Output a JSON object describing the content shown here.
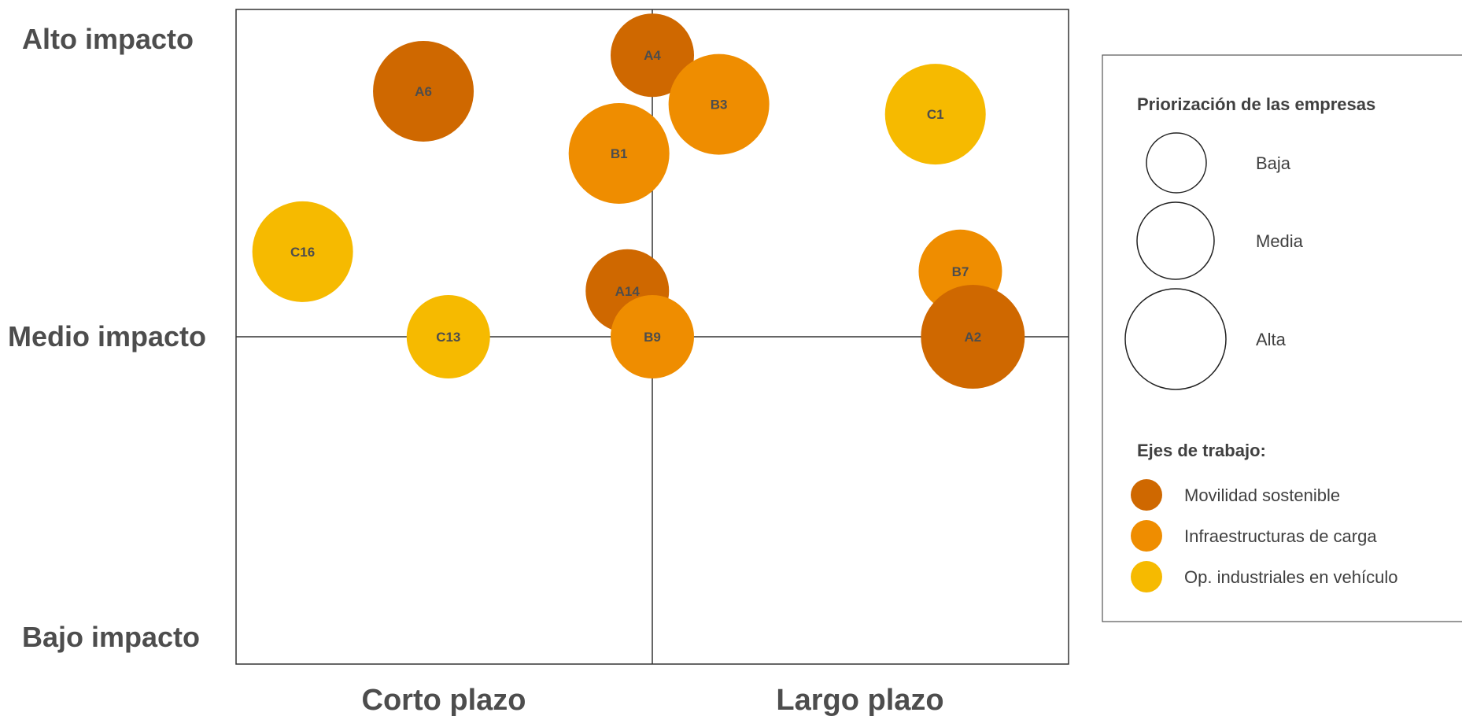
{
  "chart_data": {
    "type": "scatter",
    "subtype": "bubble",
    "title": "",
    "y_axis": {
      "labels": [
        "Alto impacto",
        "Medio impacto",
        "Bajo impacto"
      ],
      "ylim": [
        -1,
        1
      ]
    },
    "x_axis": {
      "labels": [
        "Corto plazo",
        "Largo plazo"
      ],
      "xlim": [
        -1,
        1
      ]
    },
    "grid": "center cross lines",
    "series": [
      {
        "name": "Movilidad sostenible",
        "color": "#cf6800"
      },
      {
        "name": "Infraestructuras de carga",
        "color": "#ef8d00"
      },
      {
        "name": "Op. industriales en vehículo",
        "color": "#f6ba00"
      }
    ],
    "points": [
      {
        "label": "A4",
        "series": 0,
        "x": 0.0,
        "y": 0.86,
        "priority": "Baja"
      },
      {
        "label": "A6",
        "series": 0,
        "x": -0.55,
        "y": 0.75,
        "priority": "Media"
      },
      {
        "label": "B3",
        "series": 1,
        "x": 0.16,
        "y": 0.71,
        "priority": "Media"
      },
      {
        "label": "C1",
        "series": 2,
        "x": 0.68,
        "y": 0.68,
        "priority": "Media"
      },
      {
        "label": "B1",
        "series": 1,
        "x": -0.08,
        "y": 0.56,
        "priority": "Media"
      },
      {
        "label": "C16",
        "series": 2,
        "x": -0.84,
        "y": 0.26,
        "priority": "Media"
      },
      {
        "label": "B7",
        "series": 1,
        "x": 0.74,
        "y": 0.2,
        "priority": "Baja"
      },
      {
        "label": "A14",
        "series": 0,
        "x": -0.06,
        "y": 0.14,
        "priority": "Baja"
      },
      {
        "label": "C13",
        "series": 2,
        "x": -0.49,
        "y": 0.0,
        "priority": "Baja"
      },
      {
        "label": "B9",
        "series": 1,
        "x": 0.0,
        "y": 0.0,
        "priority": "Baja"
      },
      {
        "label": "A2",
        "series": 0,
        "x": 0.77,
        "y": 0.0,
        "priority": "Alta"
      }
    ],
    "legend": {
      "placement": "right",
      "size_title": "Priorización de las empresas",
      "sizes": [
        "Baja",
        "Media",
        "Alta"
      ],
      "color_title": "Ejes de trabajo:"
    }
  }
}
